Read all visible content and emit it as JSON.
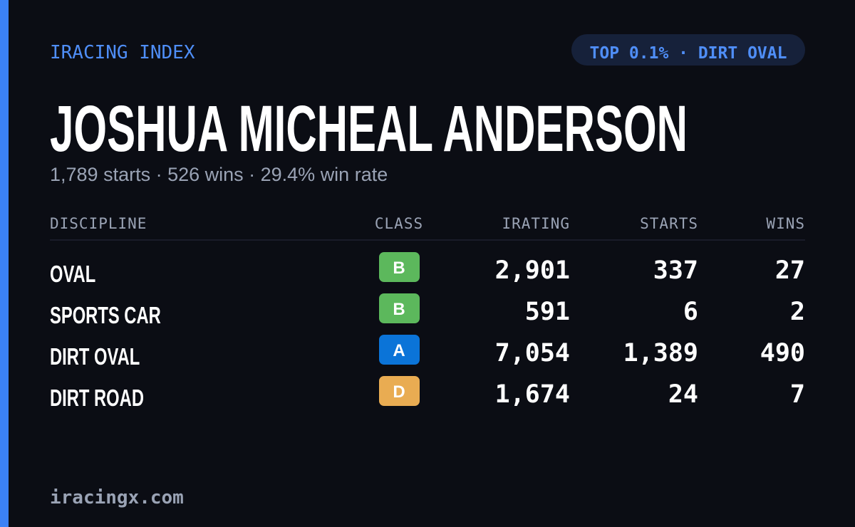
{
  "header": {
    "brand": "IRACING INDEX",
    "badge": "TOP 0.1% · DIRT OVAL"
  },
  "name": "JOSHUA MICHEAL ANDERSON",
  "summary": "1,789 starts · 526 wins · 29.4% win rate",
  "table": {
    "columns": [
      "DISCIPLINE",
      "CLASS",
      "IRATING",
      "STARTS",
      "WINS"
    ],
    "rows": [
      {
        "discipline": "OVAL",
        "class": "B",
        "class_color": "#5cb85c",
        "irating": "2,901",
        "starts": "337",
        "wins": "27"
      },
      {
        "discipline": "SPORTS CAR",
        "class": "B",
        "class_color": "#5cb85c",
        "irating": "591",
        "starts": "6",
        "wins": "2"
      },
      {
        "discipline": "DIRT OVAL",
        "class": "A",
        "class_color": "#0b74d8",
        "irating": "7,054",
        "starts": "1,389",
        "wins": "490"
      },
      {
        "discipline": "DIRT ROAD",
        "class": "D",
        "class_color": "#e9ac52",
        "irating": "1,674",
        "starts": "24",
        "wins": "7"
      }
    ]
  },
  "footer": "iracingx.com"
}
